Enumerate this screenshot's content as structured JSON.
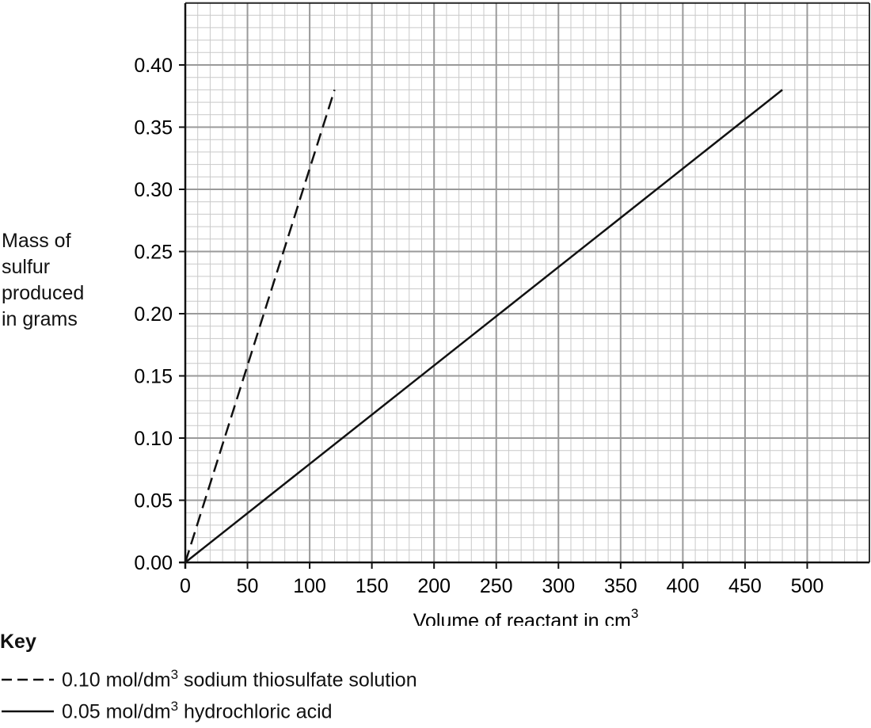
{
  "chart_data": {
    "type": "line",
    "xlabel": "Volume of reactant in cm",
    "xlabel_sup": "3",
    "ylabel": [
      "Mass of",
      "sulfur",
      "produced",
      "in grams"
    ],
    "xlim": [
      0,
      550
    ],
    "ylim": [
      0,
      0.4
    ],
    "x_ticks": [
      0,
      50,
      100,
      150,
      200,
      250,
      300,
      350,
      400,
      450,
      500
    ],
    "x_tick_labels": [
      "0",
      "50",
      "100",
      "150",
      "200",
      "250",
      "300",
      "350",
      "400",
      "450",
      "500"
    ],
    "y_ticks": [
      0,
      0.05,
      0.1,
      0.15,
      0.2,
      0.25,
      0.3,
      0.35,
      0.4
    ],
    "y_tick_labels": [
      "0.00",
      "0.05",
      "0.10",
      "0.15",
      "0.20",
      "0.25",
      "0.30",
      "0.35",
      "0.40"
    ],
    "grid": true,
    "series": [
      {
        "name": "0.10 mol/dm3 sodium thiosulfate solution",
        "style": "dashed",
        "x": [
          0,
          120
        ],
        "y": [
          0,
          0.38
        ]
      },
      {
        "name": "0.05 mol/dm3 hydrochloric acid",
        "style": "solid",
        "x": [
          0,
          480
        ],
        "y": [
          0,
          0.38
        ]
      }
    ]
  },
  "key": {
    "title": "Key",
    "items": [
      {
        "pre": "0.10 mol/dm",
        "sup": "3",
        "post": " sodium thiosulfate solution"
      },
      {
        "pre": "0.05 mol/dm",
        "sup": "3",
        "post": " hydrochloric acid"
      }
    ]
  }
}
